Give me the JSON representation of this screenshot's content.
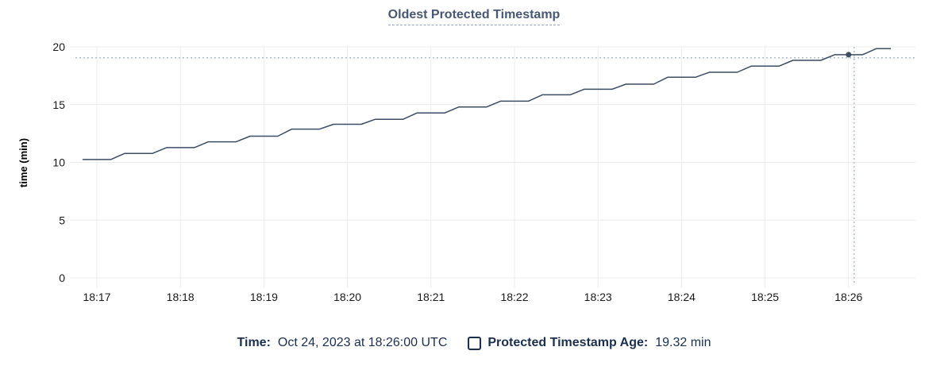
{
  "title": "Oldest Protected Timestamp",
  "colors": {
    "line": "#3b4c63",
    "hover_dot": "#3b4c63",
    "grid": "#ececec",
    "crosshair": "#a4b7c7",
    "title_text": "#475872",
    "title_underline": "#90a3ba",
    "legend_text": "#1b2f4e",
    "tick_text": "#1a1a1a",
    "background": "#ffffff"
  },
  "legend": {
    "time_label": "Time:",
    "time_value": "Oct 24, 2023 at 18:26:00 UTC",
    "series_checkbox": "unchecked-outline",
    "series_label": "Protected Timestamp Age:",
    "series_value": "19.32 min"
  },
  "chart_data": {
    "type": "line",
    "title": "Oldest Protected Timestamp",
    "xlabel": "",
    "ylabel": "time (min)",
    "ylim": [
      0,
      20
    ],
    "y_ticks": [
      0,
      5,
      10,
      15,
      20
    ],
    "x_tick_labels": [
      "18:17",
      "18:18",
      "18:19",
      "18:20",
      "18:21",
      "18:22",
      "18:23",
      "18:24",
      "18:25",
      "18:26"
    ],
    "x_base_time": "18:17:00",
    "grid": true,
    "legend_position": "bottom-center",
    "series": [
      {
        "name": "Protected Timestamp Age",
        "unit": "min",
        "points_t_seconds_from_18_17_and_minutes": [
          [
            -10,
            10.25
          ],
          [
            0,
            10.25
          ],
          [
            10,
            10.25
          ],
          [
            20,
            10.78
          ],
          [
            30,
            10.78
          ],
          [
            40,
            10.78
          ],
          [
            50,
            11.28
          ],
          [
            60,
            11.28
          ],
          [
            70,
            11.28
          ],
          [
            80,
            11.78
          ],
          [
            90,
            11.78
          ],
          [
            100,
            11.78
          ],
          [
            110,
            12.27
          ],
          [
            120,
            12.27
          ],
          [
            130,
            12.27
          ],
          [
            140,
            12.88
          ],
          [
            150,
            12.88
          ],
          [
            160,
            12.88
          ],
          [
            170,
            13.3
          ],
          [
            180,
            13.3
          ],
          [
            190,
            13.3
          ],
          [
            200,
            13.73
          ],
          [
            210,
            13.73
          ],
          [
            220,
            13.73
          ],
          [
            230,
            14.28
          ],
          [
            240,
            14.28
          ],
          [
            250,
            14.28
          ],
          [
            260,
            14.8
          ],
          [
            270,
            14.8
          ],
          [
            280,
            14.8
          ],
          [
            290,
            15.3
          ],
          [
            300,
            15.3
          ],
          [
            310,
            15.3
          ],
          [
            320,
            15.85
          ],
          [
            330,
            15.85
          ],
          [
            340,
            15.85
          ],
          [
            350,
            16.33
          ],
          [
            360,
            16.33
          ],
          [
            370,
            16.33
          ],
          [
            380,
            16.77
          ],
          [
            390,
            16.77
          ],
          [
            400,
            16.77
          ],
          [
            410,
            17.37
          ],
          [
            420,
            17.37
          ],
          [
            430,
            17.37
          ],
          [
            440,
            17.8
          ],
          [
            450,
            17.8
          ],
          [
            460,
            17.8
          ],
          [
            470,
            18.33
          ],
          [
            480,
            18.33
          ],
          [
            490,
            18.33
          ],
          [
            500,
            18.83
          ],
          [
            510,
            18.83
          ],
          [
            520,
            18.83
          ],
          [
            530,
            19.32
          ],
          [
            540,
            19.32
          ],
          [
            550,
            19.32
          ],
          [
            560,
            19.85
          ],
          [
            570,
            19.85
          ]
        ]
      }
    ],
    "hover": {
      "time": "18:26:00",
      "t": 540,
      "value": 19.32,
      "cursor_t": 544,
      "cursor_value": 19.05
    }
  }
}
